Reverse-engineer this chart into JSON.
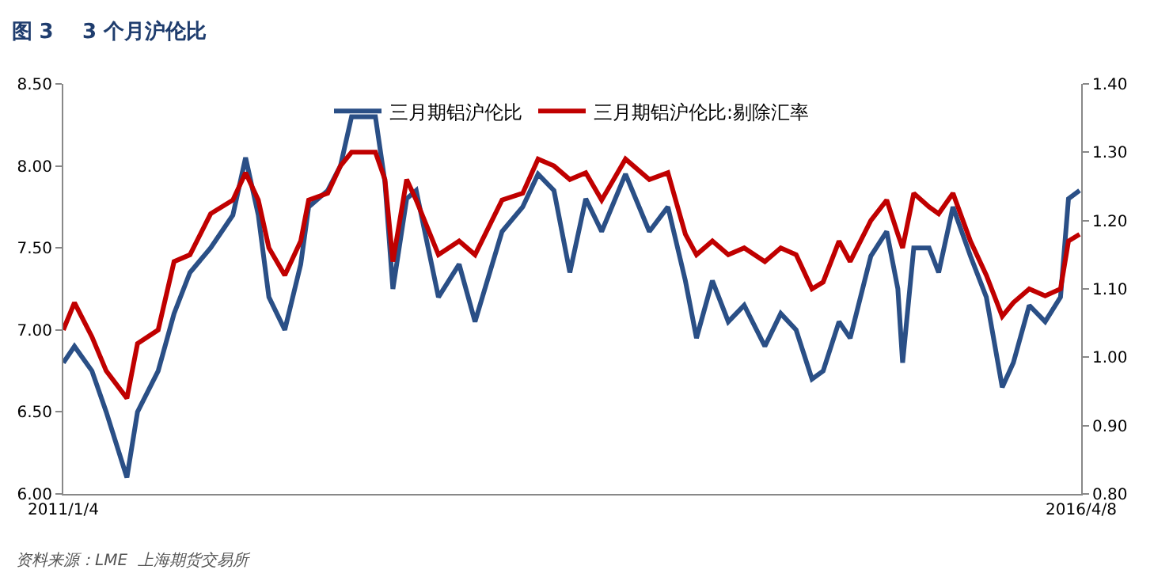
{
  "chart_data": {
    "type": "line",
    "title": "图 3    3 个月沪伦比",
    "x": [
      "2011-01-04",
      "2011-01-25",
      "2011-02-27",
      "2011-03-26",
      "2011-05-04",
      "2011-05-24",
      "2011-07-02",
      "2011-08-01",
      "2011-08-31",
      "2011-10-09",
      "2011-11-20",
      "2011-12-14",
      "2012-01-07",
      "2012-01-27",
      "2012-02-26",
      "2012-03-27",
      "2012-04-11",
      "2012-05-17",
      "2012-06-10",
      "2012-07-01",
      "2012-08-15",
      "2012-09-02",
      "2012-09-17",
      "2012-10-13",
      "2012-10-31",
      "2012-12-12",
      "2013-01-20",
      "2013-02-19",
      "2013-04-11",
      "2013-05-20",
      "2013-06-18",
      "2013-07-18",
      "2013-08-17",
      "2013-09-16",
      "2013-10-16",
      "2013-11-30",
      "2014-01-14",
      "2014-02-18",
      "2014-03-23",
      "2014-04-13",
      "2014-05-13",
      "2014-06-12",
      "2014-07-12",
      "2014-08-20",
      "2014-09-19",
      "2014-10-18",
      "2014-11-17",
      "2014-12-08",
      "2015-01-07",
      "2015-01-28",
      "2015-03-08",
      "2015-04-07",
      "2015-04-28",
      "2015-05-07",
      "2015-05-28",
      "2015-06-26",
      "2015-07-14",
      "2015-08-10",
      "2015-09-12",
      "2015-10-12",
      "2015-11-11",
      "2015-12-02",
      "2016-01-01",
      "2016-01-31",
      "2016-02-29",
      "2016-03-15",
      "2016-04-05"
    ],
    "series": [
      {
        "name": "三月期铝沪伦比",
        "color": "#2a4f86",
        "values": [
          6.8,
          6.9,
          6.75,
          6.5,
          6.1,
          6.5,
          6.75,
          7.1,
          7.35,
          7.5,
          7.7,
          8.05,
          7.7,
          7.2,
          7.0,
          7.4,
          7.75,
          7.85,
          8.0,
          8.3,
          8.3,
          7.9,
          7.25,
          7.8,
          7.85,
          7.2,
          7.4,
          7.05,
          7.6,
          7.75,
          7.95,
          7.85,
          7.35,
          7.8,
          7.6,
          7.95,
          7.6,
          7.75,
          7.3,
          6.95,
          7.3,
          7.05,
          7.15,
          6.9,
          7.1,
          7.0,
          6.7,
          6.75,
          7.05,
          6.95,
          7.45,
          7.6,
          7.25,
          6.8,
          7.5,
          7.5,
          7.35,
          7.75,
          7.45,
          7.2,
          6.65,
          6.8,
          7.15,
          7.05,
          7.2,
          7.8,
          7.85
        ]
      },
      {
        "name": "三月期铝沪伦比:剔除汇率",
        "color": "#c00000",
        "axis": "y2",
        "values": [
          1.04,
          1.08,
          1.03,
          0.98,
          0.94,
          1.02,
          1.04,
          1.14,
          1.15,
          1.21,
          1.23,
          1.27,
          1.23,
          1.16,
          1.12,
          1.17,
          1.23,
          1.24,
          1.28,
          1.3,
          1.3,
          1.26,
          1.14,
          1.26,
          1.23,
          1.15,
          1.17,
          1.15,
          1.23,
          1.24,
          1.29,
          1.28,
          1.26,
          1.27,
          1.23,
          1.29,
          1.26,
          1.27,
          1.18,
          1.15,
          1.17,
          1.15,
          1.16,
          1.14,
          1.16,
          1.15,
          1.1,
          1.11,
          1.17,
          1.14,
          1.2,
          1.23,
          1.18,
          1.16,
          1.24,
          1.22,
          1.21,
          1.24,
          1.17,
          1.12,
          1.06,
          1.08,
          1.1,
          1.09,
          1.1,
          1.17,
          1.18
        ]
      }
    ],
    "xlim": [
      "2011-01-04",
      "2016-04-08"
    ],
    "xticks": [
      {
        "value": "2011-01-04",
        "label": "2011/1/4"
      },
      {
        "value": "2016-04-08",
        "label": "2016/4/8"
      }
    ],
    "ylim": [
      6,
      8.5
    ],
    "yticks": [
      {
        "value": 6,
        "label": "6.00"
      },
      {
        "value": 6.5,
        "label": "6.50"
      },
      {
        "value": 7,
        "label": "7.00"
      },
      {
        "value": 7.5,
        "label": "7.50"
      },
      {
        "value": 8,
        "label": "8.00"
      },
      {
        "value": 8.5,
        "label": "8.50"
      }
    ],
    "y2lim": [
      0.8,
      1.4
    ],
    "y2ticks": [
      {
        "value": 0.8,
        "label": "0.80"
      },
      {
        "value": 0.9,
        "label": "0.90"
      },
      {
        "value": 1,
        "label": "1.00"
      },
      {
        "value": 1.1,
        "label": "1.10"
      },
      {
        "value": 1.2,
        "label": "1.20"
      },
      {
        "value": 1.3,
        "label": "1.30"
      },
      {
        "value": 1.4,
        "label": "1.40"
      }
    ],
    "annotations": [
      "资料来源：LME  上海期货交易所"
    ],
    "grid": false,
    "legend": "top",
    "marker": "none",
    "line_style": "solid"
  }
}
